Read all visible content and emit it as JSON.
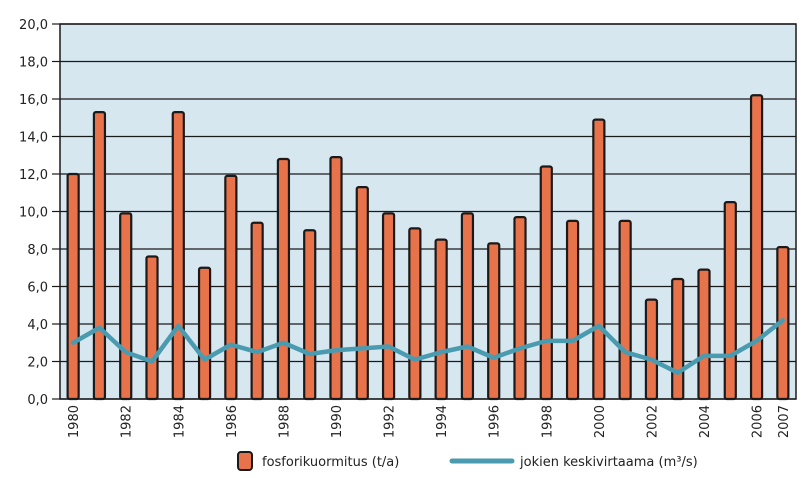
{
  "chart_data": {
    "type": "bar",
    "title": "",
    "xlabel": "",
    "ylabel": "",
    "ylim": [
      0,
      20
    ],
    "yticks": [
      "0,0",
      "2,0",
      "4,0",
      "6,0",
      "8,0",
      "10,0",
      "12,0",
      "14,0",
      "16,0",
      "18,0",
      "20,0"
    ],
    "categories": [
      "1980",
      "1981",
      "1982",
      "1983",
      "1984",
      "1985",
      "1986",
      "1987",
      "1988",
      "1989",
      "1990",
      "1991",
      "1992",
      "1993",
      "1994",
      "1995",
      "1996",
      "1997",
      "1998",
      "1999",
      "2000",
      "2001",
      "2002",
      "2003",
      "2004",
      "2005",
      "2006",
      "2007"
    ],
    "xtick_labels": [
      "1980",
      "1982",
      "1984",
      "1986",
      "1988",
      "1990",
      "1992",
      "1994",
      "1996",
      "1998",
      "2000",
      "2002",
      "2004",
      "2006",
      "2007"
    ],
    "series": [
      {
        "name": "fosforikuormitus (t/a)",
        "type": "bar",
        "color": "#e8734a",
        "values": [
          12.0,
          15.3,
          9.9,
          7.6,
          15.3,
          7.0,
          11.9,
          9.4,
          12.8,
          9.0,
          12.9,
          11.3,
          9.9,
          9.1,
          8.5,
          9.9,
          8.3,
          9.7,
          12.4,
          9.5,
          14.9,
          9.5,
          5.3,
          6.4,
          6.9,
          10.5,
          16.2,
          8.1
        ]
      },
      {
        "name": "jokien keskivirtaama (m³/s)",
        "type": "line",
        "color": "#4a9bb0",
        "values": [
          3.0,
          3.8,
          2.5,
          2.0,
          3.9,
          2.1,
          2.9,
          2.5,
          3.0,
          2.4,
          2.6,
          2.7,
          2.8,
          2.1,
          2.5,
          2.8,
          2.2,
          2.7,
          3.1,
          3.1,
          3.9,
          2.5,
          2.1,
          1.4,
          2.3,
          2.3,
          3.1,
          4.2
        ]
      }
    ],
    "grid": true,
    "legend": "bottom"
  },
  "colors": {
    "plot_background": "#d6e7f0",
    "grid": "#1a1a1a",
    "bar_outline": "#1a1a1a"
  }
}
